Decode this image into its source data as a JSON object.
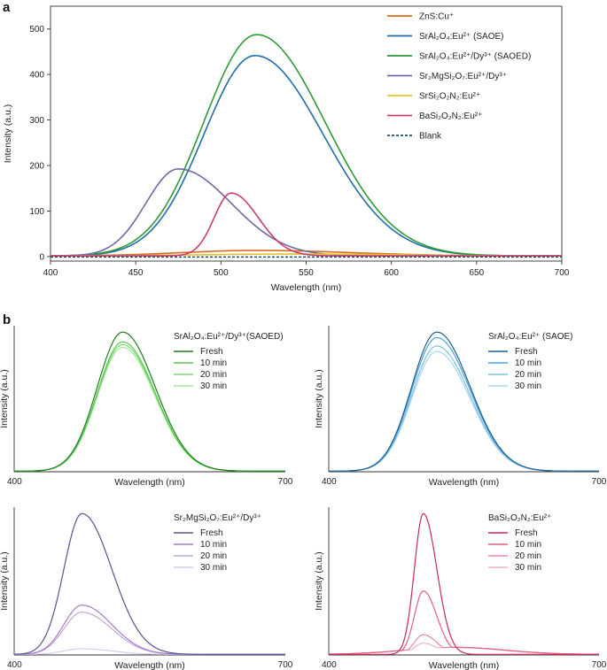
{
  "panel_labels": {
    "a": "a",
    "b": "b"
  },
  "chart_data": [
    {
      "id": "main",
      "type": "line",
      "title": "",
      "xlabel": "Wavelength (nm)",
      "ylabel": "Intensity (a.u.)",
      "xlim": [
        400,
        700
      ],
      "ylim": [
        -10,
        550
      ],
      "xticks": [
        "400",
        "450",
        "500",
        "550",
        "600",
        "650",
        "700"
      ],
      "yticks": [
        "0",
        "100",
        "200",
        "300",
        "400",
        "500"
      ],
      "legend_position": "top-right",
      "series": [
        {
          "name": "ZnS:Cu⁺",
          "color": "#d9691f",
          "dashed": false,
          "peak": 520,
          "amp": 12,
          "wl": 42,
          "wr": 55
        },
        {
          "name": "SrAl₂O₄:Eu²⁺ (SAOE)",
          "color": "#1f6ea8",
          "dashed": false,
          "peak": 520,
          "amp": 440,
          "wl": 30,
          "wr": 40
        },
        {
          "name": "SrAl₂O₄:Eu²⁺/Dy³⁺ (SAOED)",
          "color": "#2e9a34",
          "dashed": false,
          "peak": 521,
          "amp": 486,
          "wl": 31,
          "wr": 40
        },
        {
          "name": "Sr₂MgSi₂O₇:Eu²⁺/Dy³⁺",
          "color": "#6e6aa6",
          "dashed": false,
          "peak": 475,
          "amp": 191,
          "wl": 19,
          "wr": 31
        },
        {
          "name": "SrSi₂O₂N₂:Eu²⁺",
          "color": "#e8c22a",
          "dashed": false,
          "peak": 540,
          "amp": 4,
          "wl": 50,
          "wr": 60
        },
        {
          "name": "BaSi₂O₂N₂:Eu²⁺",
          "color": "#c9406e",
          "dashed": false,
          "peak": 506,
          "amp": 138,
          "wl": 10,
          "wr": 16
        },
        {
          "name": "Blank",
          "color": "#1a4f7a",
          "dashed": true,
          "peak": 550,
          "amp": 0,
          "wl": 50,
          "wr": 50
        }
      ]
    },
    {
      "id": "saoed",
      "type": "line",
      "title": "SrAl₂O₄:Eu²⁺/Dy³⁺(SAOED)",
      "xlabel": "Wavelength (nm)",
      "ylabel": "Intensity (a.u.)",
      "xlim": [
        400,
        700
      ],
      "ylim": [
        0,
        1.05
      ],
      "xticks": [
        "400",
        "700"
      ],
      "peak": 520,
      "wl": 28,
      "wr": 36,
      "series": [
        {
          "name": "Fresh",
          "color": "#1f7f1f",
          "amp": 1.0
        },
        {
          "name": "10 min",
          "color": "#56c94e",
          "amp": 0.93
        },
        {
          "name": "20 min",
          "color": "#7fdc72",
          "amp": 0.91
        },
        {
          "name": "30 min",
          "color": "#a6ec98",
          "amp": 0.89
        }
      ]
    },
    {
      "id": "saoe",
      "type": "line",
      "title": "SrAl₂O₄:Eu²⁺ (SAOE)",
      "xlabel": "Wavelength (nm)",
      "ylabel": "Intensity (a.u.)",
      "xlim": [
        400,
        700
      ],
      "ylim": [
        0,
        1.05
      ],
      "xticks": [
        "400",
        "700"
      ],
      "peak": 520,
      "wl": 28,
      "wr": 37,
      "series": [
        {
          "name": "Fresh",
          "color": "#1f5f8f",
          "amp": 1.0
        },
        {
          "name": "10 min",
          "color": "#4aa3d6",
          "amp": 0.96
        },
        {
          "name": "20 min",
          "color": "#7cc0e6",
          "amp": 0.9
        },
        {
          "name": "30 min",
          "color": "#a9d6f0",
          "amp": 0.86
        }
      ]
    },
    {
      "id": "smso",
      "type": "line",
      "title": "Sr₂MgSi₂O₇:Eu²⁺/Dy³⁺",
      "xlabel": "Wavelength (nm)",
      "ylabel": "Intensity (a.u.)",
      "xlim": [
        400,
        700
      ],
      "ylim": [
        0,
        1.05
      ],
      "xticks": [
        "400",
        "700"
      ],
      "peak": 475,
      "wl": 20,
      "wr": 33,
      "series": [
        {
          "name": "Fresh",
          "color": "#55568f",
          "amp": 1.0
        },
        {
          "name": "10 min",
          "color": "#a47fc9",
          "amp": 0.35
        },
        {
          "name": "20 min",
          "color": "#c3a6de",
          "amp": 0.3
        },
        {
          "name": "30 min",
          "color": "#d9ccea",
          "amp": 0.04
        }
      ]
    },
    {
      "id": "bson",
      "type": "line",
      "title": "BaSi₂O₂N₂:Eu²⁺",
      "xlabel": "Wavelength (nm)",
      "ylabel": "Intensity (a.u.)",
      "xlim": [
        400,
        700
      ],
      "ylim": [
        0,
        1.05
      ],
      "xticks": [
        "400",
        "700"
      ],
      "peak": 505,
      "wl": 10,
      "wr": 15,
      "series": [
        {
          "name": "Fresh",
          "color": "#c92a5a",
          "amp": 1.0
        },
        {
          "name": "10 min",
          "color": "#e0607f",
          "amp": 0.45
        },
        {
          "name": "20 min",
          "color": "#eb8aa2",
          "amp": 0.14
        },
        {
          "name": "30 min",
          "color": "#f2b3c4",
          "amp": 0.08
        }
      ]
    }
  ]
}
